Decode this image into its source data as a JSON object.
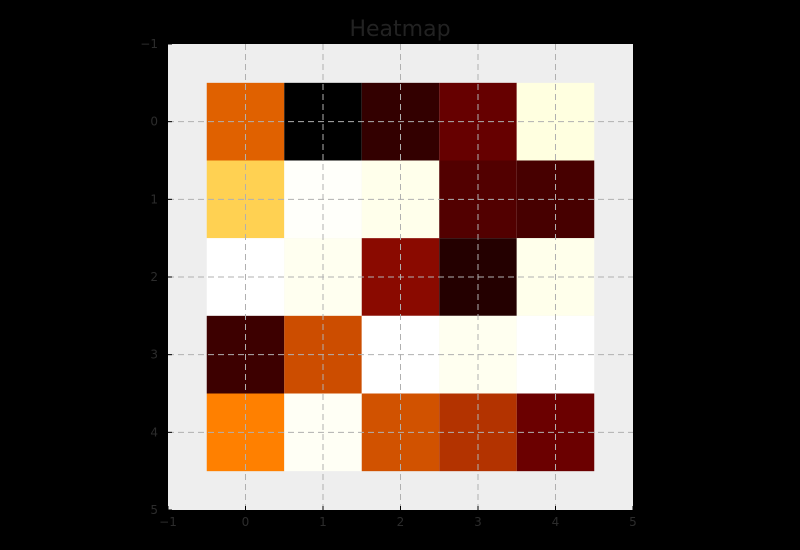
{
  "chart_data": {
    "type": "heatmap",
    "title": "Heatmap",
    "xlabel": "",
    "ylabel": "",
    "xlim": [
      -1,
      5
    ],
    "ylim": [
      5,
      -1
    ],
    "x_ticks": [
      "−1",
      "0",
      "1",
      "2",
      "3",
      "4",
      "5"
    ],
    "y_ticks": [
      "−1",
      "0",
      "1",
      "2",
      "3",
      "4",
      "5"
    ],
    "grid": true,
    "colormap": "afmhot",
    "values": [
      [
        0.44,
        0.0,
        0.1,
        0.2,
        0.94
      ],
      [
        0.66,
        0.99,
        0.96,
        0.16,
        0.14
      ],
      [
        1.0,
        0.97,
        0.27,
        0.07,
        0.96
      ],
      [
        0.12,
        0.4,
        1.0,
        0.97,
        1.0
      ],
      [
        0.5,
        0.98,
        0.41,
        0.35,
        0.21
      ]
    ],
    "colors": {
      "figure_background": "#000000",
      "axes_background": "#eeeeee",
      "title": "#222222",
      "tick_labels": "#2c2c2c",
      "grid": "#b0b0b0"
    }
  }
}
